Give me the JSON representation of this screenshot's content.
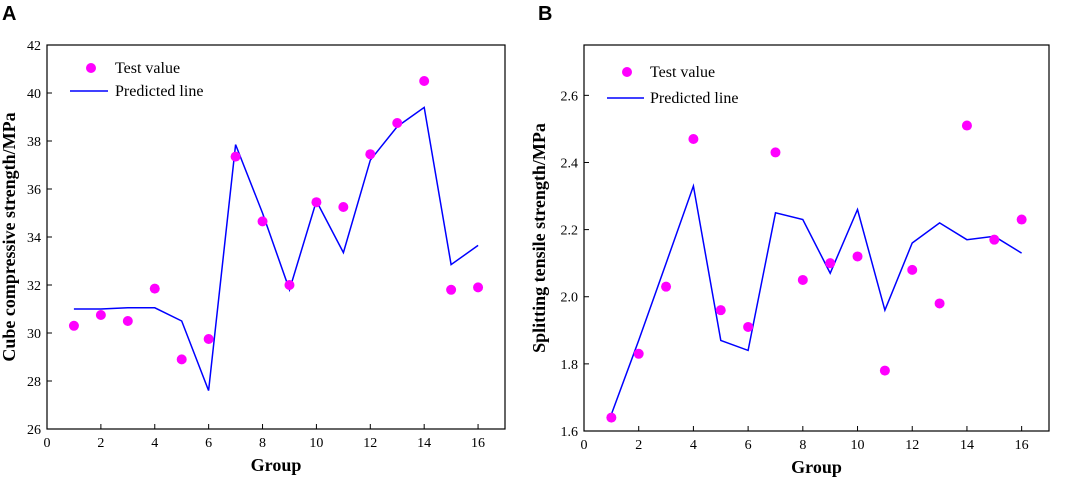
{
  "chart_data": [
    {
      "panel": "A",
      "type": "scatter+line",
      "xlabel": "Group",
      "ylabel": "Cube compressive strength/MPa",
      "xlim": [
        0,
        17
      ],
      "ylim": [
        26,
        42
      ],
      "xticks": [
        0,
        2,
        4,
        6,
        8,
        10,
        12,
        14,
        16
      ],
      "yticks": [
        26,
        28,
        30,
        32,
        34,
        36,
        38,
        40,
        42
      ],
      "legend_position": "top-left",
      "series": [
        {
          "name": "Test value",
          "kind": "scatter",
          "color": "#ff00ff",
          "x": [
            1,
            2,
            3,
            4,
            5,
            6,
            7,
            8,
            9,
            10,
            11,
            12,
            13,
            14,
            15,
            16
          ],
          "y": [
            30.3,
            30.75,
            30.5,
            31.85,
            28.9,
            29.75,
            37.35,
            34.65,
            32.0,
            35.45,
            35.25,
            37.45,
            38.75,
            40.5,
            31.8,
            31.9
          ]
        },
        {
          "name": "Predicted line",
          "kind": "line",
          "color": "#0000ff",
          "x": [
            1,
            2,
            3,
            4,
            5,
            6,
            7,
            8,
            9,
            10,
            11,
            12,
            13,
            14,
            15,
            16
          ],
          "y": [
            31.0,
            31.0,
            31.05,
            31.05,
            30.5,
            27.6,
            37.85,
            35.0,
            31.8,
            35.5,
            33.35,
            37.2,
            38.6,
            39.4,
            32.85,
            33.65
          ]
        }
      ]
    },
    {
      "panel": "B",
      "type": "scatter+line",
      "xlabel": "Group",
      "ylabel": "Splitting tensile strength/MPa",
      "xlim": [
        0,
        17
      ],
      "ylim": [
        1.6,
        2.75
      ],
      "xticks": [
        0,
        2,
        4,
        6,
        8,
        10,
        12,
        14,
        16
      ],
      "yticks": [
        "1.6",
        "1.8",
        "2.0",
        "2.2",
        "2.4",
        "2.6"
      ],
      "legend_position": "top-left",
      "series": [
        {
          "name": "Test value",
          "kind": "scatter",
          "color": "#ff00ff",
          "x": [
            1,
            2,
            3,
            4,
            5,
            6,
            7,
            8,
            9,
            10,
            11,
            12,
            13,
            14,
            15,
            16
          ],
          "y": [
            1.64,
            1.83,
            2.03,
            2.47,
            1.96,
            1.91,
            2.43,
            2.05,
            2.1,
            2.12,
            1.78,
            2.08,
            1.98,
            2.51,
            2.17,
            2.23
          ]
        },
        {
          "name": "Predicted line",
          "kind": "line",
          "color": "#0000ff",
          "x": [
            1,
            2,
            3,
            4,
            5,
            6,
            7,
            8,
            9,
            10,
            11,
            12,
            13,
            14,
            15,
            16
          ],
          "y": [
            1.65,
            1.87,
            2.1,
            2.33,
            1.87,
            1.84,
            2.25,
            2.23,
            2.07,
            2.26,
            1.96,
            2.16,
            2.22,
            2.17,
            2.18,
            2.13
          ]
        }
      ]
    }
  ]
}
